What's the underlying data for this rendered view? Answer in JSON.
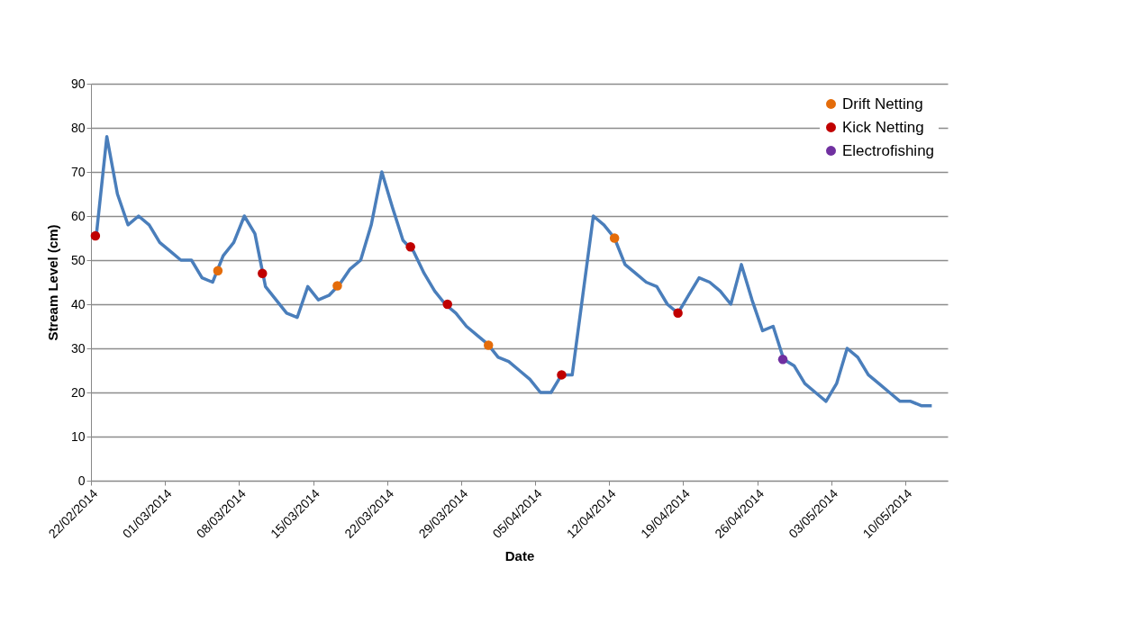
{
  "chart_data": {
    "type": "line",
    "xlabel": "Date",
    "ylabel": "Stream Level (cm)",
    "xlim": [
      "2014-02-22",
      "2014-05-14"
    ],
    "ylim": [
      0,
      90
    ],
    "yticks": [
      0,
      10,
      20,
      30,
      40,
      50,
      60,
      70,
      80,
      90
    ],
    "xticks": [
      {
        "value": "2014-02-22",
        "label": "22/02/2014"
      },
      {
        "value": "2014-03-01",
        "label": "01/03/2014"
      },
      {
        "value": "2014-03-08",
        "label": "08/03/2014"
      },
      {
        "value": "2014-03-15",
        "label": "15/03/2014"
      },
      {
        "value": "2014-03-22",
        "label": "22/03/2014"
      },
      {
        "value": "2014-03-29",
        "label": "29/03/2014"
      },
      {
        "value": "2014-04-05",
        "label": "05/04/2014"
      },
      {
        "value": "2014-04-12",
        "label": "12/04/2014"
      },
      {
        "value": "2014-04-19",
        "label": "19/04/2014"
      },
      {
        "value": "2014-04-26",
        "label": "26/04/2014"
      },
      {
        "value": "2014-05-03",
        "label": "03/05/2014"
      },
      {
        "value": "2014-05-10",
        "label": "10/05/2014"
      }
    ],
    "grid": "y",
    "legend": "top right",
    "series": [
      {
        "color": "#4a7ebb",
        "line_style": "solid",
        "x": [
          "2014-02-22T12:00",
          "2014-02-23T12:00",
          "2014-02-24T12:00",
          "2014-02-25T12:00",
          "2014-02-26T12:00",
          "2014-02-27T12:00",
          "2014-02-28T12:00",
          "2014-03-01T12:00",
          "2014-03-02T12:00",
          "2014-03-03T12:00",
          "2014-03-04T12:00",
          "2014-03-05T12:00",
          "2014-03-06T12:00",
          "2014-03-07T12:00",
          "2014-03-08T12:00",
          "2014-03-09T12:00",
          "2014-03-10T12:00",
          "2014-03-11T12:00",
          "2014-03-12T12:00",
          "2014-03-13T12:00",
          "2014-03-14T12:00",
          "2014-03-15T12:00",
          "2014-03-16T12:00",
          "2014-03-17T12:00",
          "2014-03-18T12:00",
          "2014-03-19T12:00",
          "2014-03-20T12:00",
          "2014-03-21T12:00",
          "2014-03-22T12:00",
          "2014-03-23T12:00",
          "2014-03-24T12:00",
          "2014-03-25T12:00",
          "2014-03-26T12:00",
          "2014-03-27T12:00",
          "2014-03-28T12:00",
          "2014-03-29T12:00",
          "2014-03-30T12:00",
          "2014-03-31T12:00",
          "2014-04-01T12:00",
          "2014-04-02T12:00",
          "2014-04-03T12:00",
          "2014-04-04T12:00",
          "2014-04-05T12:00",
          "2014-04-06T12:00",
          "2014-04-07T12:00",
          "2014-04-08T12:00",
          "2014-04-09T12:00",
          "2014-04-10T12:00",
          "2014-04-11T12:00",
          "2014-04-12T12:00",
          "2014-04-13T12:00",
          "2014-04-14T12:00",
          "2014-04-15T12:00",
          "2014-04-16T12:00",
          "2014-04-17T12:00",
          "2014-04-18T12:00",
          "2014-04-19T12:00",
          "2014-04-20T12:00",
          "2014-04-21T12:00",
          "2014-04-22T12:00",
          "2014-04-23T12:00",
          "2014-04-24T12:00",
          "2014-04-25T12:00",
          "2014-04-26T12:00",
          "2014-04-27T12:00",
          "2014-04-28T12:00",
          "2014-04-29T12:00",
          "2014-04-30T12:00",
          "2014-05-01T12:00",
          "2014-05-02T12:00",
          "2014-05-03T12:00",
          "2014-05-04T12:00",
          "2014-05-05T12:00",
          "2014-05-06T12:00",
          "2014-05-07T12:00",
          "2014-05-08T12:00",
          "2014-05-09T12:00",
          "2014-05-10T12:00",
          "2014-05-11T12:00",
          "2014-05-12T12:00"
        ],
        "values": [
          55.5,
          78,
          65,
          58,
          60,
          58,
          54,
          52,
          50,
          50,
          46,
          45,
          51,
          54,
          60,
          56,
          44,
          41,
          38,
          37,
          44,
          41,
          42,
          44.5,
          48,
          50,
          58,
          70,
          62,
          54.5,
          52,
          47,
          43,
          40,
          38,
          35,
          33,
          31,
          28,
          27,
          25,
          23,
          20,
          20,
          24,
          24,
          42,
          60,
          58,
          55,
          49,
          47,
          45,
          44,
          40,
          38,
          42,
          46,
          45,
          43,
          40,
          49,
          41,
          34,
          35,
          27.5,
          26,
          22,
          20,
          18,
          22,
          30,
          28,
          24,
          22,
          20,
          18,
          18,
          17,
          17
        ]
      },
      {
        "type": "scatter",
        "name": "Drift Netting",
        "color": "#e46c0a",
        "marker": "circle",
        "x": [
          "2014-03-06T00:00",
          "2014-03-17T07:00",
          "2014-03-31T14:00",
          "2014-04-12T12:00"
        ],
        "values": [
          47.6,
          44.2,
          30.7,
          55
        ]
      },
      {
        "type": "scatter",
        "name": "Kick Netting",
        "color": "#c00000",
        "marker": "circle",
        "x": [
          "2014-02-22T10:00",
          "2014-03-10T05:00",
          "2014-03-24T05:00",
          "2014-03-27T17:00",
          "2014-04-07T12:00",
          "2014-04-18T12:00"
        ],
        "values": [
          55.5,
          47,
          53,
          40,
          24,
          38
        ]
      },
      {
        "type": "scatter",
        "name": "Electrofishing",
        "color": "#7030a0",
        "marker": "circle",
        "x": [
          "2014-04-28T10:00"
        ],
        "values": [
          27.5
        ]
      }
    ]
  }
}
